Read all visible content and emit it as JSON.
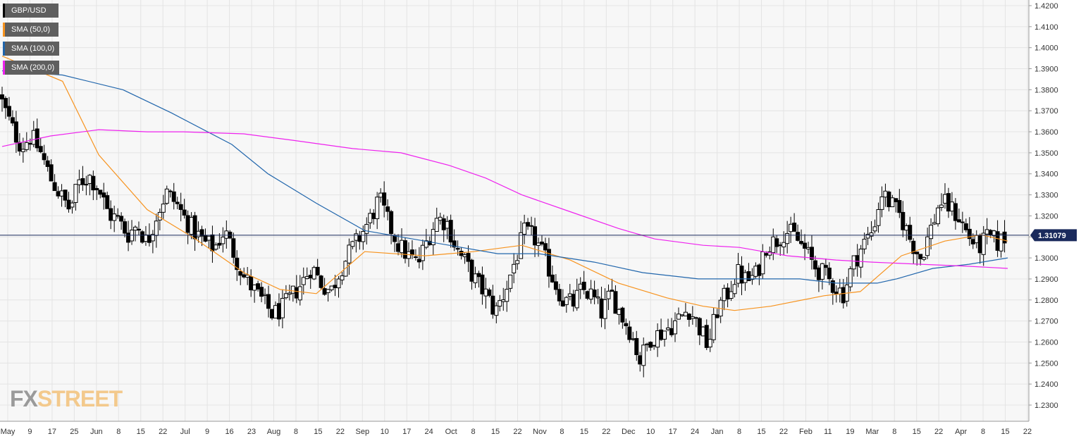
{
  "chart_data": {
    "type": "candlestick",
    "symbol": "GBP/USD",
    "y_range": [
      1.225,
      1.422
    ],
    "y_ticks": [
      "1.4200",
      "1.4100",
      "1.4000",
      "1.3900",
      "1.3800",
      "1.3700",
      "1.3600",
      "1.3500",
      "1.3400",
      "1.3300",
      "1.3200",
      "1.3100",
      "1.3000",
      "1.2900",
      "1.2800",
      "1.2700",
      "1.2600",
      "1.2500",
      "1.2400",
      "1.2300"
    ],
    "x_labels": [
      "May",
      "9",
      "17",
      "25",
      "Jun",
      "8",
      "15",
      "22",
      "Jul",
      "9",
      "16",
      "23",
      "Aug",
      "8",
      "15",
      "22",
      "Sep",
      "10",
      "17",
      "24",
      "Oct",
      "8",
      "15",
      "22",
      "Nov",
      "8",
      "15",
      "22",
      "Dec",
      "10",
      "17",
      "24",
      "Jan",
      "8",
      "15",
      "22",
      "Feb",
      "11",
      "19",
      "Mar",
      "8",
      "15",
      "22",
      "Apr",
      "8",
      "15",
      "22"
    ],
    "last_price": "1.31079",
    "last_price_value": 1.31079,
    "legend": [
      {
        "label": "GBP/USD",
        "color": "#000000"
      },
      {
        "label": "SMA (50,0)",
        "color": "#f7931e"
      },
      {
        "label": "SMA (100,0)",
        "color": "#2166ac"
      },
      {
        "label": "SMA (200,0)",
        "color": "#ee22ee"
      }
    ],
    "close_path": [
      [
        0,
        1.374
      ],
      [
        4,
        1.362
      ],
      [
        8,
        1.353
      ],
      [
        12,
        1.358
      ],
      [
        16,
        1.35
      ],
      [
        20,
        1.338
      ],
      [
        24,
        1.33
      ],
      [
        28,
        1.323
      ],
      [
        32,
        1.336
      ],
      [
        36,
        1.339
      ],
      [
        40,
        1.333
      ],
      [
        44,
        1.321
      ],
      [
        48,
        1.318
      ],
      [
        52,
        1.311
      ],
      [
        56,
        1.316
      ],
      [
        60,
        1.307
      ],
      [
        64,
        1.321
      ],
      [
        68,
        1.331
      ],
      [
        72,
        1.326
      ],
      [
        76,
        1.318
      ],
      [
        80,
        1.312
      ],
      [
        84,
        1.307
      ],
      [
        88,
        1.305
      ],
      [
        92,
        1.313
      ],
      [
        96,
        1.302
      ],
      [
        100,
        1.291
      ],
      [
        104,
        1.285
      ],
      [
        108,
        1.279
      ],
      [
        112,
        1.273
      ],
      [
        116,
        1.276
      ],
      [
        120,
        1.282
      ],
      [
        124,
        1.288
      ],
      [
        128,
        1.296
      ],
      [
        132,
        1.288
      ],
      [
        136,
        1.284
      ],
      [
        140,
        1.295
      ],
      [
        144,
        1.303
      ],
      [
        148,
        1.31
      ],
      [
        152,
        1.318
      ],
      [
        156,
        1.328
      ],
      [
        160,
        1.316
      ],
      [
        164,
        1.306
      ],
      [
        168,
        1.301
      ],
      [
        172,
        1.297
      ],
      [
        176,
        1.309
      ],
      [
        180,
        1.319
      ],
      [
        184,
        1.317
      ],
      [
        188,
        1.304
      ],
      [
        192,
        1.297
      ],
      [
        196,
        1.289
      ],
      [
        200,
        1.283
      ],
      [
        204,
        1.274
      ],
      [
        208,
        1.284
      ],
      [
        212,
        1.298
      ],
      [
        216,
        1.312
      ],
      [
        220,
        1.31
      ],
      [
        224,
        1.301
      ],
      [
        228,
        1.29
      ],
      [
        232,
        1.28
      ],
      [
        236,
        1.278
      ],
      [
        240,
        1.285
      ],
      [
        244,
        1.282
      ],
      [
        248,
        1.274
      ],
      [
        252,
        1.283
      ],
      [
        256,
        1.273
      ],
      [
        260,
        1.265
      ],
      [
        264,
        1.251
      ],
      [
        268,
        1.262
      ],
      [
        272,
        1.264
      ],
      [
        276,
        1.267
      ],
      [
        280,
        1.271
      ],
      [
        284,
        1.276
      ],
      [
        288,
        1.268
      ],
      [
        292,
        1.258
      ],
      [
        296,
        1.276
      ],
      [
        300,
        1.283
      ],
      [
        304,
        1.293
      ],
      [
        308,
        1.289
      ],
      [
        312,
        1.292
      ],
      [
        316,
        1.306
      ],
      [
        320,
        1.308
      ],
      [
        324,
        1.313
      ],
      [
        328,
        1.31
      ],
      [
        332,
        1.304
      ],
      [
        336,
        1.296
      ],
      [
        340,
        1.292
      ],
      [
        344,
        1.287
      ],
      [
        348,
        1.283
      ],
      [
        352,
        1.297
      ],
      [
        356,
        1.306
      ],
      [
        360,
        1.313
      ],
      [
        364,
        1.331
      ],
      [
        368,
        1.325
      ],
      [
        372,
        1.319
      ],
      [
        376,
        1.308
      ],
      [
        380,
        1.3
      ],
      [
        384,
        1.313
      ],
      [
        388,
        1.327
      ],
      [
        392,
        1.324
      ],
      [
        396,
        1.319
      ],
      [
        400,
        1.31
      ],
      [
        404,
        1.305
      ],
      [
        408,
        1.31
      ],
      [
        412,
        1.307
      ],
      [
        416,
        1.3108
      ]
    ],
    "series": [
      {
        "name": "SMA (50,0)",
        "points": [
          [
            0,
            1.396
          ],
          [
            25,
            1.384
          ],
          [
            40,
            1.349
          ],
          [
            60,
            1.323
          ],
          [
            80,
            1.309
          ],
          [
            100,
            1.293
          ],
          [
            115,
            1.285
          ],
          [
            130,
            1.283
          ],
          [
            150,
            1.303
          ],
          [
            175,
            1.301
          ],
          [
            195,
            1.303
          ],
          [
            215,
            1.306
          ],
          [
            235,
            1.299
          ],
          [
            255,
            1.288
          ],
          [
            275,
            1.281
          ],
          [
            290,
            1.277
          ],
          [
            303,
            1.275
          ],
          [
            318,
            1.277
          ],
          [
            340,
            1.282
          ],
          [
            355,
            1.284
          ],
          [
            372,
            1.301
          ],
          [
            390,
            1.308
          ],
          [
            405,
            1.311
          ],
          [
            416,
            1.308
          ]
        ]
      },
      {
        "name": "SMA (100,0)",
        "points": [
          [
            0,
            1.389
          ],
          [
            25,
            1.387
          ],
          [
            50,
            1.38
          ],
          [
            70,
            1.369
          ],
          [
            95,
            1.354
          ],
          [
            110,
            1.34
          ],
          [
            130,
            1.326
          ],
          [
            150,
            1.313
          ],
          [
            165,
            1.31
          ],
          [
            185,
            1.306
          ],
          [
            205,
            1.302
          ],
          [
            222,
            1.302
          ],
          [
            245,
            1.298
          ],
          [
            265,
            1.293
          ],
          [
            288,
            1.29
          ],
          [
            305,
            1.29
          ],
          [
            330,
            1.29
          ],
          [
            345,
            1.288
          ],
          [
            362,
            1.288
          ],
          [
            370,
            1.29
          ],
          [
            385,
            1.295
          ],
          [
            400,
            1.297
          ],
          [
            416,
            1.3
          ]
        ]
      },
      {
        "name": "SMA (200,0)",
        "points": [
          [
            0,
            1.353
          ],
          [
            20,
            1.358
          ],
          [
            40,
            1.361
          ],
          [
            60,
            1.36
          ],
          [
            75,
            1.36
          ],
          [
            100,
            1.359
          ],
          [
            120,
            1.356
          ],
          [
            145,
            1.352
          ],
          [
            165,
            1.35
          ],
          [
            185,
            1.344
          ],
          [
            200,
            1.338
          ],
          [
            215,
            1.33
          ],
          [
            235,
            1.322
          ],
          [
            255,
            1.314
          ],
          [
            270,
            1.309
          ],
          [
            290,
            1.306
          ],
          [
            305,
            1.305
          ],
          [
            315,
            1.303
          ],
          [
            325,
            1.301
          ],
          [
            335,
            1.3
          ],
          [
            345,
            1.299
          ],
          [
            360,
            1.298
          ],
          [
            380,
            1.297
          ],
          [
            400,
            1.296
          ],
          [
            416,
            1.295
          ]
        ]
      }
    ]
  },
  "logo": {
    "fx": "FX",
    "street": "STREET"
  }
}
